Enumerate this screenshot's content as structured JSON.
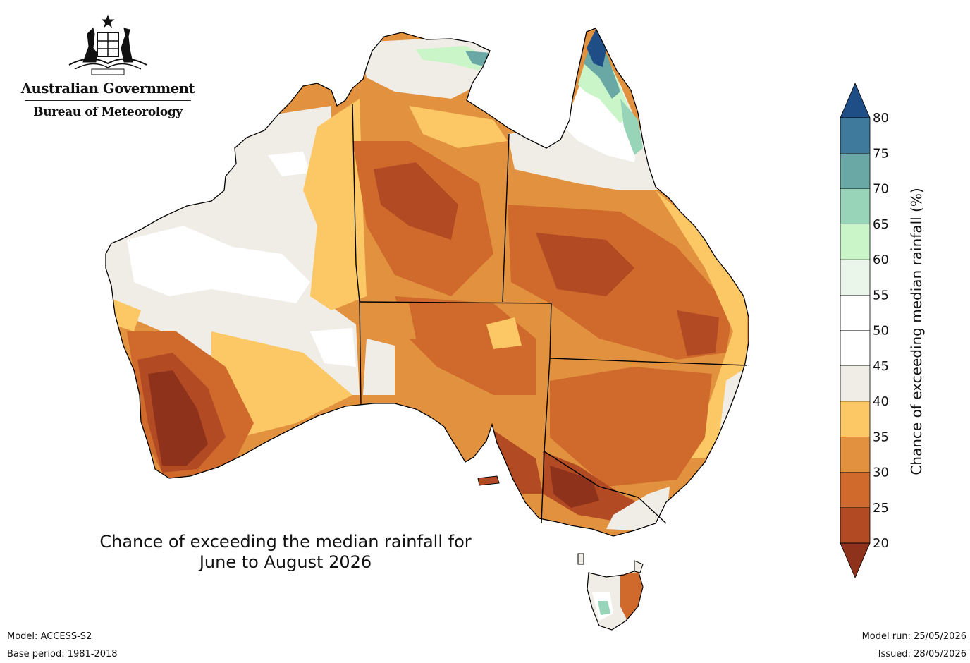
{
  "logo": {
    "government": "Australian Government",
    "agency": "Bureau of Meteorology",
    "crest_icon": "coat-of-arms-icon"
  },
  "map": {
    "title_line1": "Chance of exceeding the median rainfall for",
    "title_line2": "June to August 2026",
    "ocean_color": "#ffffff",
    "border_color": "#000000"
  },
  "colorbar": {
    "label": "Chance of exceeding median rainfall (%)",
    "ticks": [
      "20",
      "25",
      "30",
      "35",
      "40",
      "45",
      "50",
      "55",
      "60",
      "65",
      "70",
      "75",
      "80"
    ],
    "colors": {
      "below_20": "#8f321c",
      "20-25": "#b24a24",
      "25-30": "#cf6a2c",
      "30-35": "#e2913f",
      "35-40": "#fcc865",
      "40-45": "#f0ece6",
      "45-50": "#ffffff",
      "50-55": "#ffffff",
      "55-60": "#eaf6ea",
      "60-65": "#c9f5c9",
      "65-70": "#98d4b8",
      "70-75": "#6aa8a6",
      "75-80": "#3f7a9c",
      "above_80": "#1f4d85"
    }
  },
  "footer": {
    "model": "Model: ACCESS-S2",
    "base_period": "Base period: 1981-2018",
    "model_run": "Model run: 25/05/2026",
    "issued": "Issued: 28/05/2026"
  }
}
